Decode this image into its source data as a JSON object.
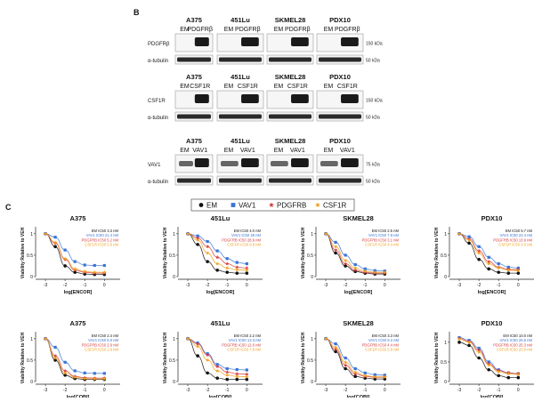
{
  "panel_b": {
    "label": "B",
    "cell_lines": [
      "A375",
      "451Lu",
      "SKMEL28",
      "PDX10"
    ],
    "blocks": [
      {
        "lanes": [
          "EM",
          "PDGFRβ"
        ],
        "rows": [
          {
            "label": "PDGFRβ",
            "marker": "150 kDa"
          },
          {
            "label": "α-tubulin",
            "marker": "50 kDa"
          }
        ]
      },
      {
        "lanes": [
          "EM",
          "CSF1R"
        ],
        "rows": [
          {
            "label": "CSF1R",
            "marker": "150 kDa"
          },
          {
            "label": "α-tubulin",
            "marker": "50 kDa"
          }
        ]
      },
      {
        "lanes": [
          "EM",
          "VAV1"
        ],
        "rows": [
          {
            "label": "VAV1",
            "marker": "75 kDa"
          },
          {
            "label": "α-tubulin",
            "marker": "50 kDa"
          }
        ]
      }
    ]
  },
  "panel_c": {
    "label": "C",
    "legend": [
      {
        "name": "EM",
        "color": "#111111",
        "symbol": "circle"
      },
      {
        "name": "VAV1",
        "color": "#3a73d6",
        "symbol": "square"
      },
      {
        "name": "PDGFRB",
        "color": "#d63a3a",
        "symbol": "star"
      },
      {
        "name": "CSF1R",
        "color": "#f0a020",
        "symbol": "star"
      }
    ]
  },
  "chart_data": [
    {
      "type": "line",
      "title": "A375",
      "xlabel": "log[ENCOR]",
      "ylabel": "Viability Relative to VEH",
      "xlim": [
        -3.5,
        0.8
      ],
      "ylim": [
        0,
        1.1
      ],
      "xticks": [
        -3,
        -2,
        -1,
        0
      ],
      "yticks": [
        0.0,
        0.5,
        1.0
      ],
      "annotations": [
        "EM IC50 3.3 nM",
        "VAV1 IC50 21.4 nM",
        "PDGFRB IC50 5.2 nM",
        "CSF1R IC50 5.5 nM"
      ],
      "series": [
        {
          "name": "EM",
          "x": [
            -3,
            -2.5,
            -2,
            -1.5,
            -1,
            -0.5,
            0
          ],
          "y": [
            1.0,
            0.7,
            0.25,
            0.1,
            0.06,
            0.05,
            0.05
          ]
        },
        {
          "name": "VAV1",
          "x": [
            -3,
            -2.5,
            -2,
            -1.5,
            -1,
            -0.5,
            0
          ],
          "y": [
            1.0,
            0.92,
            0.62,
            0.35,
            0.27,
            0.26,
            0.26
          ]
        },
        {
          "name": "PDGFRB",
          "x": [
            -3,
            -2.5,
            -2,
            -1.5,
            -1,
            -0.5,
            0
          ],
          "y": [
            1.0,
            0.78,
            0.4,
            0.15,
            0.1,
            0.08,
            0.08
          ]
        },
        {
          "name": "CSF1R",
          "x": [
            -3,
            -2.5,
            -2,
            -1.5,
            -1,
            -0.5,
            0
          ],
          "y": [
            1.0,
            0.8,
            0.42,
            0.18,
            0.12,
            0.1,
            0.1
          ]
        }
      ]
    },
    {
      "type": "line",
      "title": "451Lu",
      "xlabel": "log[ENCOR]",
      "ylabel": "Viability Relative to VEH",
      "xlim": [
        -3.5,
        0.8
      ],
      "ylim": [
        0,
        1.1
      ],
      "xticks": [
        -3,
        -2,
        -1,
        0
      ],
      "yticks": [
        0.0,
        0.5,
        1.0
      ],
      "annotations": [
        "EM IC50 4.0 nM",
        "VAV1 IC50 48 nM",
        "PDGFRB IC50 28.9 nM",
        "CSF1R IC50 9.8 nM"
      ],
      "series": [
        {
          "name": "EM",
          "x": [
            -3,
            -2.5,
            -2,
            -1.5,
            -1,
            -0.5,
            0
          ],
          "y": [
            1.0,
            0.75,
            0.35,
            0.15,
            0.1,
            0.08,
            0.08
          ]
        },
        {
          "name": "VAV1",
          "x": [
            -3,
            -2.5,
            -2,
            -1.5,
            -1,
            -0.5,
            0
          ],
          "y": [
            1.0,
            0.95,
            0.82,
            0.6,
            0.42,
            0.33,
            0.3
          ]
        },
        {
          "name": "PDGFRB",
          "x": [
            -3,
            -2.5,
            -2,
            -1.5,
            -1,
            -0.5,
            0
          ],
          "y": [
            1.0,
            0.9,
            0.7,
            0.45,
            0.3,
            0.22,
            0.2
          ]
        },
        {
          "name": "CSF1R",
          "x": [
            -3,
            -2.5,
            -2,
            -1.5,
            -1,
            -0.5,
            0
          ],
          "y": [
            1.0,
            0.85,
            0.55,
            0.3,
            0.2,
            0.16,
            0.15
          ]
        }
      ]
    },
    {
      "type": "line",
      "title": "SKMEL28",
      "xlabel": "log[ENCOR]",
      "ylabel": "Viability Relative to VEH",
      "xlim": [
        -3.5,
        0.8
      ],
      "ylim": [
        0,
        1.1
      ],
      "xticks": [
        -3,
        -2,
        -1,
        0
      ],
      "yticks": [
        0.0,
        0.5,
        1.0
      ],
      "annotations": [
        "EM IC50 2.5 nM",
        "VAV1 IC50 7.8 nM",
        "PDGFRB IC50 3.1 nM",
        "CSF1R IC50 4.4 nM"
      ],
      "series": [
        {
          "name": "EM",
          "x": [
            -3,
            -2.5,
            -2,
            -1.5,
            -1,
            -0.5,
            0
          ],
          "y": [
            1.0,
            0.55,
            0.25,
            0.12,
            0.08,
            0.06,
            0.06
          ]
        },
        {
          "name": "VAV1",
          "x": [
            -3,
            -2.5,
            -2,
            -1.5,
            -1,
            -0.5,
            0
          ],
          "y": [
            1.0,
            0.8,
            0.5,
            0.28,
            0.18,
            0.14,
            0.13
          ]
        },
        {
          "name": "PDGFRB",
          "x": [
            -3,
            -2.5,
            -2,
            -1.5,
            -1,
            -0.5,
            0
          ],
          "y": [
            1.0,
            0.62,
            0.3,
            0.15,
            0.1,
            0.08,
            0.08
          ]
        },
        {
          "name": "CSF1R",
          "x": [
            -3,
            -2.5,
            -2,
            -1.5,
            -1,
            -0.5,
            0
          ],
          "y": [
            1.0,
            0.7,
            0.38,
            0.2,
            0.13,
            0.1,
            0.1
          ]
        }
      ]
    },
    {
      "type": "line",
      "title": "PDX10",
      "xlabel": "log[ENCOR]",
      "ylabel": "Viability Relative to VEH",
      "xlim": [
        -3.5,
        0.8
      ],
      "ylim": [
        0,
        1.1
      ],
      "xticks": [
        -3,
        -2,
        -1,
        0
      ],
      "yticks": [
        0.0,
        0.5,
        1.0
      ],
      "annotations": [
        "EM IC50 5.7 nM",
        "VAV1 IC50 22.4 nM",
        "PDGFRB IC50 13.9 nM",
        "CSF1R IC50 9.5 nM"
      ],
      "series": [
        {
          "name": "EM",
          "x": [
            -3,
            -2.5,
            -2,
            -1.5,
            -1,
            -0.5,
            0
          ],
          "y": [
            1.0,
            0.78,
            0.4,
            0.18,
            0.1,
            0.08,
            0.08
          ]
        },
        {
          "name": "VAV1",
          "x": [
            -3,
            -2.5,
            -2,
            -1.5,
            -1,
            -0.5,
            0
          ],
          "y": [
            1.0,
            0.93,
            0.7,
            0.45,
            0.3,
            0.22,
            0.2
          ]
        },
        {
          "name": "PDGFRB",
          "x": [
            -3,
            -2.5,
            -2,
            -1.5,
            -1,
            -0.5,
            0
          ],
          "y": [
            1.0,
            0.88,
            0.6,
            0.35,
            0.22,
            0.17,
            0.16
          ]
        },
        {
          "name": "CSF1R",
          "x": [
            -3,
            -2.5,
            -2,
            -1.5,
            -1,
            -0.5,
            0
          ],
          "y": [
            1.0,
            0.85,
            0.55,
            0.3,
            0.2,
            0.15,
            0.14
          ]
        }
      ]
    },
    {
      "type": "line",
      "title": "A375",
      "xlabel": "log[COBI]",
      "ylabel": "Viability Relative to VEH",
      "xlim": [
        -3.5,
        0.8
      ],
      "ylim": [
        0,
        1.1
      ],
      "xticks": [
        -3,
        -2,
        -1,
        0
      ],
      "yticks": [
        0.0,
        0.5,
        1.0
      ],
      "annotations": [
        "EM IC50 2.4 nM",
        "VAV1 IC50 6.0 nM",
        "PDGFRB IC50 2.9 nM",
        "CSF1R IC50 2.6 nM"
      ],
      "series": [
        {
          "name": "EM",
          "x": [
            -3,
            -2.5,
            -2,
            -1.5,
            -1,
            -0.5,
            0
          ],
          "y": [
            1.0,
            0.5,
            0.15,
            0.07,
            0.05,
            0.05,
            0.05
          ]
        },
        {
          "name": "VAV1",
          "x": [
            -3,
            -2.5,
            -2,
            -1.5,
            -1,
            -0.5,
            0
          ],
          "y": [
            1.0,
            0.8,
            0.45,
            0.25,
            0.2,
            0.19,
            0.19
          ]
        },
        {
          "name": "PDGFRB",
          "x": [
            -3,
            -2.5,
            -2,
            -1.5,
            -1,
            -0.5,
            0
          ],
          "y": [
            1.0,
            0.6,
            0.25,
            0.12,
            0.09,
            0.08,
            0.08
          ]
        },
        {
          "name": "CSF1R",
          "x": [
            -3,
            -2.5,
            -2,
            -1.5,
            -1,
            -0.5,
            0
          ],
          "y": [
            1.0,
            0.55,
            0.2,
            0.1,
            0.07,
            0.06,
            0.06
          ]
        }
      ]
    },
    {
      "type": "line",
      "title": "451Lu",
      "xlabel": "log[COBI]",
      "ylabel": "Viability Relative to VEH",
      "xlim": [
        -3.5,
        0.8
      ],
      "ylim": [
        0,
        1.1
      ],
      "xticks": [
        -3,
        -2,
        -1,
        0
      ],
      "yticks": [
        0.0,
        0.5,
        1.0
      ],
      "annotations": [
        "EM IC50 2.2 nM",
        "VAV1 IC50 13.3 nM",
        "PDGFRB IC50 12.6 nM",
        "CSF1R IC50 7.8 nM"
      ],
      "series": [
        {
          "name": "EM",
          "x": [
            -3,
            -2.5,
            -2,
            -1.5,
            -1,
            -0.5,
            0
          ],
          "y": [
            1.0,
            0.6,
            0.2,
            0.08,
            0.05,
            0.05,
            0.05
          ]
        },
        {
          "name": "VAV1",
          "x": [
            -3,
            -2.5,
            -2,
            -1.5,
            -1,
            -0.5,
            0
          ],
          "y": [
            1.0,
            0.9,
            0.65,
            0.4,
            0.3,
            0.28,
            0.27
          ]
        },
        {
          "name": "PDGFRB",
          "x": [
            -3,
            -2.5,
            -2,
            -1.5,
            -1,
            -0.5,
            0
          ],
          "y": [
            1.0,
            0.88,
            0.62,
            0.35,
            0.22,
            0.18,
            0.17
          ]
        },
        {
          "name": "CSF1R",
          "x": [
            -3,
            -2.5,
            -2,
            -1.5,
            -1,
            -0.5,
            0
          ],
          "y": [
            1.0,
            0.82,
            0.5,
            0.25,
            0.15,
            0.12,
            0.11
          ]
        }
      ]
    },
    {
      "type": "line",
      "title": "SKMEL28",
      "xlabel": "log[COBI]",
      "ylabel": "Viability Relative to VEH",
      "xlim": [
        -3.5,
        0.8
      ],
      "ylim": [
        0,
        1.1
      ],
      "xticks": [
        -3,
        -2,
        -1,
        0
      ],
      "yticks": [
        0.0,
        0.5,
        1.0
      ],
      "annotations": [
        "EM IC50 3.3 nM",
        "VAV1 IC50 9.2 nM",
        "PDGFRB IC50 4.4 nM",
        "CSF1R IC50 5.9 nM"
      ],
      "series": [
        {
          "name": "EM",
          "x": [
            -3,
            -2.5,
            -2,
            -1.5,
            -1,
            -0.5,
            0
          ],
          "y": [
            1.0,
            0.7,
            0.3,
            0.12,
            0.08,
            0.06,
            0.06
          ]
        },
        {
          "name": "VAV1",
          "x": [
            -3,
            -2.5,
            -2,
            -1.5,
            -1,
            -0.5,
            0
          ],
          "y": [
            1.0,
            0.88,
            0.55,
            0.3,
            0.2,
            0.16,
            0.15
          ]
        },
        {
          "name": "PDGFRB",
          "x": [
            -3,
            -2.5,
            -2,
            -1.5,
            -1,
            -0.5,
            0
          ],
          "y": [
            1.0,
            0.75,
            0.38,
            0.18,
            0.12,
            0.1,
            0.1
          ]
        },
        {
          "name": "CSF1R",
          "x": [
            -3,
            -2.5,
            -2,
            -1.5,
            -1,
            -0.5,
            0
          ],
          "y": [
            1.0,
            0.8,
            0.45,
            0.22,
            0.14,
            0.11,
            0.11
          ]
        }
      ]
    },
    {
      "type": "line",
      "title": "PDX10",
      "xlabel": "log[COBI]",
      "ylabel": "Viability Relative to VEH",
      "xlim": [
        -3.5,
        0.8
      ],
      "ylim": [
        0,
        1.2
      ],
      "xticks": [
        -3,
        -2,
        -1,
        0
      ],
      "yticks": [
        0.0,
        0.5,
        1.0
      ],
      "annotations": [
        "EM IC50 10.0 nM",
        "VAV1 IC50 25.5 nM",
        "PDGFRB IC50 25.3 nM",
        "CSF1R IC50 20.9 nM"
      ],
      "series": [
        {
          "name": "EM",
          "x": [
            -3,
            -2.5,
            -2,
            -1.5,
            -1,
            -0.5,
            0
          ],
          "y": [
            1.0,
            0.92,
            0.6,
            0.3,
            0.15,
            0.1,
            0.1
          ]
        },
        {
          "name": "VAV1",
          "x": [
            -3,
            -2.5,
            -2,
            -1.5,
            -1,
            -0.5,
            0
          ],
          "y": [
            1.12,
            1.05,
            0.85,
            0.5,
            0.3,
            0.22,
            0.2
          ]
        },
        {
          "name": "PDGFRB",
          "x": [
            -3,
            -2.5,
            -2,
            -1.5,
            -1,
            -0.5,
            0
          ],
          "y": [
            1.1,
            1.02,
            0.8,
            0.45,
            0.28,
            0.22,
            0.2
          ]
        },
        {
          "name": "CSF1R",
          "x": [
            -3,
            -2.5,
            -2,
            -1.5,
            -1,
            -0.5,
            0
          ],
          "y": [
            1.08,
            1.0,
            0.75,
            0.42,
            0.25,
            0.2,
            0.18
          ]
        }
      ]
    }
  ]
}
